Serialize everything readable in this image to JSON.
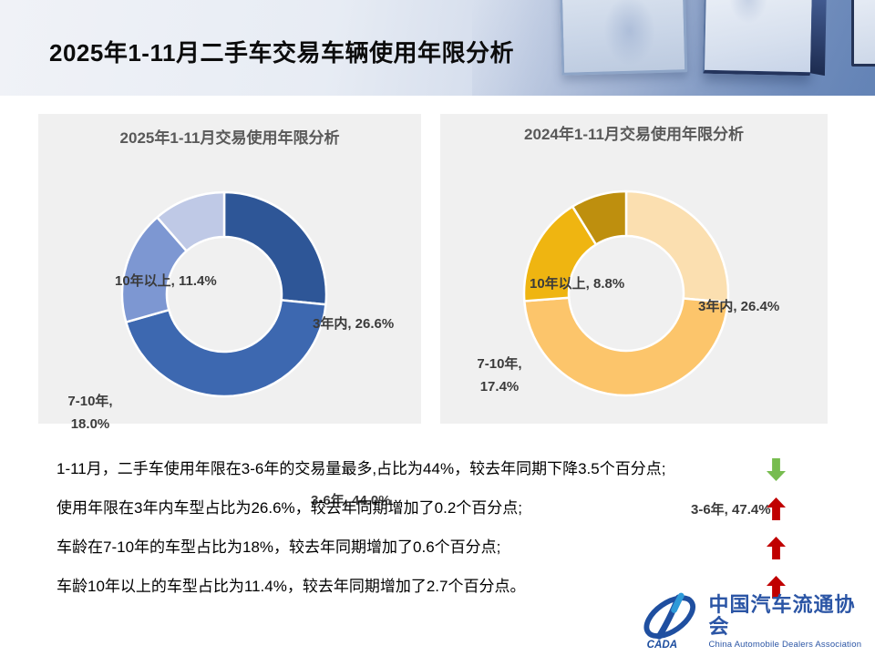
{
  "slide": {
    "title": "2025年1-11月二手车交易车辆使用年限分析"
  },
  "chart_data": [
    {
      "type": "pie",
      "subtype": "donut",
      "title": "2025年1-11月交易使用年限分析",
      "categories": [
        "3年内",
        "3-6年",
        "7-10年",
        "10年以上"
      ],
      "values": [
        26.6,
        44.0,
        18.0,
        11.4
      ],
      "colors": [
        "#2E5697",
        "#3D68B0",
        "#7D97D2",
        "#BFC9E6"
      ],
      "start_angle_deg": 0,
      "direction": "clockwise",
      "label_parts": {
        "top": "10年以上, 11.4%",
        "right": "3年内, 26.6%",
        "left_line1": "7-10年,",
        "left_line2": "18.0%",
        "bottom": "3-6年, 44.0%"
      }
    },
    {
      "type": "pie",
      "subtype": "donut",
      "title": "2024年1-11月交易使用年限分析",
      "categories": [
        "3年内",
        "3-6年",
        "7-10年",
        "10年以上"
      ],
      "values": [
        26.4,
        47.4,
        17.4,
        8.8
      ],
      "colors": [
        "#FBDFB0",
        "#FCC56B",
        "#EFB511",
        "#BE8F0E"
      ],
      "start_angle_deg": 0,
      "direction": "clockwise",
      "label_parts": {
        "top": "10年以上, 8.8%",
        "right": "3年内, 26.4%",
        "left_line1": "7-10年,",
        "left_line2": "17.4%",
        "bottom": "3-6年, 47.4%"
      }
    }
  ],
  "bullets": [
    {
      "text": "1-11月，二手车使用年限在3-6年的交易量最多,占比为44%，较去年同期下降3.5个百分点;",
      "arrow": "down",
      "arrow_color": "#77BC4F"
    },
    {
      "text": "使用年限在3年内车型占比为26.6%，较去年同期增加了0.2个百分点;",
      "arrow": "up",
      "arrow_color": "#C00000"
    },
    {
      "text": "车龄在7-10年的车型占比为18%，较去年同期增加了0.6个百分点;",
      "arrow": "up",
      "arrow_color": "#C00000"
    },
    {
      "text": "车龄10年以上的车型占比为11.4%，较去年同期增加了2.7个百分点。",
      "arrow": "up",
      "arrow_color": "#C00000"
    }
  ],
  "logo": {
    "acronym": "CADA",
    "name_cn": "中国汽车流通协会",
    "name_en": "China Automobile Dealers Association",
    "brand_color": "#2B55A5"
  }
}
